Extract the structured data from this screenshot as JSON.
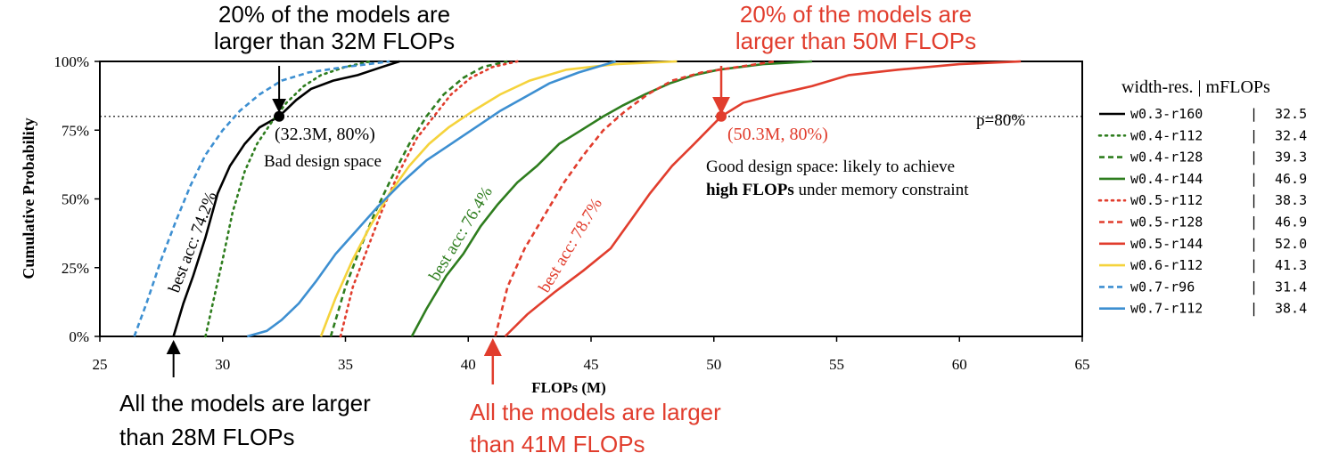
{
  "chart_data": {
    "type": "line",
    "xlabel": "FLOPs (M)",
    "ylabel": "Cumulative Probability",
    "xlim": [
      25,
      65
    ],
    "ylim": [
      0,
      100
    ],
    "xticks": [
      "25",
      "30",
      "35",
      "40",
      "45",
      "50",
      "55",
      "60",
      "65"
    ],
    "yticks": [
      "0%",
      "25%",
      "50%",
      "75%",
      "100%"
    ],
    "threshold": {
      "y": 80,
      "label": "p=80%"
    },
    "legend_placement": "right",
    "legend_header": "width-res. | mFLOPs",
    "series": [
      {
        "name": "w0.3-r160",
        "mflops": "32.5",
        "color": "#000000",
        "style": "solid",
        "points": [
          [
            28,
            0
          ],
          [
            28.4,
            12
          ],
          [
            28.8,
            22
          ],
          [
            29.3,
            36
          ],
          [
            29.8,
            52
          ],
          [
            30.3,
            62
          ],
          [
            30.9,
            70
          ],
          [
            31.5,
            76
          ],
          [
            32.3,
            80
          ],
          [
            33,
            86
          ],
          [
            33.6,
            90
          ],
          [
            34.5,
            93
          ],
          [
            35.5,
            95
          ],
          [
            36.5,
            98
          ],
          [
            37.2,
            100
          ]
        ]
      },
      {
        "name": "w0.4-r112",
        "mflops": "32.4",
        "color": "#2e7d1e",
        "style": "dotted",
        "points": [
          [
            29.3,
            0
          ],
          [
            29.6,
            12
          ],
          [
            30,
            28
          ],
          [
            30.4,
            45
          ],
          [
            30.9,
            60
          ],
          [
            31.4,
            70
          ],
          [
            32,
            78
          ],
          [
            32.6,
            85
          ],
          [
            33.3,
            91
          ],
          [
            34,
            95
          ],
          [
            35,
            98
          ],
          [
            36,
            100
          ]
        ]
      },
      {
        "name": "w0.4-r128",
        "mflops": "39.3",
        "color": "#2e7d1e",
        "style": "dashed",
        "points": [
          [
            34.4,
            0
          ],
          [
            35,
            18
          ],
          [
            35.6,
            32
          ],
          [
            36.2,
            45
          ],
          [
            36.9,
            58
          ],
          [
            37.6,
            70
          ],
          [
            38.3,
            80
          ],
          [
            39,
            88
          ],
          [
            39.8,
            94
          ],
          [
            40.6,
            98
          ],
          [
            41.6,
            100
          ]
        ]
      },
      {
        "name": "w0.4-r144",
        "mflops": "46.9",
        "color": "#2e7d1e",
        "style": "solid",
        "points": [
          [
            37.7,
            0
          ],
          [
            38.3,
            10
          ],
          [
            39.1,
            22
          ],
          [
            39.8,
            30
          ],
          [
            40.5,
            40
          ],
          [
            41.2,
            48
          ],
          [
            42,
            56
          ],
          [
            42.8,
            62
          ],
          [
            43.7,
            70
          ],
          [
            44.6,
            75
          ],
          [
            45.5,
            80
          ],
          [
            46.3,
            84
          ],
          [
            47.2,
            88
          ],
          [
            48.2,
            92
          ],
          [
            49.2,
            95
          ],
          [
            50.2,
            97
          ],
          [
            52,
            99
          ],
          [
            54,
            100
          ]
        ]
      },
      {
        "name": "w0.5-r112",
        "mflops": "38.3",
        "color": "#e13d2d",
        "style": "dotted",
        "points": [
          [
            34.8,
            0
          ],
          [
            35.3,
            18
          ],
          [
            35.9,
            32
          ],
          [
            36.5,
            46
          ],
          [
            37.2,
            60
          ],
          [
            37.9,
            72
          ],
          [
            38.6,
            80
          ],
          [
            39.3,
            88
          ],
          [
            40.1,
            94
          ],
          [
            41,
            98
          ],
          [
            42,
            100
          ]
        ]
      },
      {
        "name": "w0.5-r128",
        "mflops": "46.9",
        "color": "#e13d2d",
        "style": "dashed",
        "points": [
          [
            41.1,
            0
          ],
          [
            41.6,
            18
          ],
          [
            42.3,
            32
          ],
          [
            43.1,
            44
          ],
          [
            43.9,
            56
          ],
          [
            44.7,
            66
          ],
          [
            45.5,
            75
          ],
          [
            46.4,
            82
          ],
          [
            47.3,
            88
          ],
          [
            48.3,
            93
          ],
          [
            49.5,
            96
          ],
          [
            51,
            98
          ],
          [
            52.5,
            100
          ]
        ]
      },
      {
        "name": "w0.5-r144",
        "mflops": "52.0",
        "color": "#e13d2d",
        "style": "solid",
        "points": [
          [
            41.5,
            0
          ],
          [
            42.4,
            8
          ],
          [
            43.5,
            16
          ],
          [
            44.7,
            24
          ],
          [
            45.8,
            32
          ],
          [
            46.6,
            42
          ],
          [
            47.4,
            52
          ],
          [
            48.3,
            62
          ],
          [
            49.2,
            70
          ],
          [
            50.3,
            80
          ],
          [
            51.2,
            85
          ],
          [
            52.5,
            88
          ],
          [
            54,
            91
          ],
          [
            55.5,
            95
          ],
          [
            57.5,
            97
          ],
          [
            60,
            99
          ],
          [
            62.5,
            100
          ]
        ]
      },
      {
        "name": "w0.6-r112",
        "mflops": "41.3",
        "color": "#f5d33c",
        "style": "solid",
        "points": [
          [
            34,
            0
          ],
          [
            34.6,
            14
          ],
          [
            35.3,
            28
          ],
          [
            36,
            40
          ],
          [
            36.8,
            52
          ],
          [
            37.6,
            62
          ],
          [
            38.4,
            70
          ],
          [
            39.2,
            76
          ],
          [
            40.2,
            82
          ],
          [
            41.3,
            88
          ],
          [
            42.5,
            93
          ],
          [
            44,
            97
          ],
          [
            46,
            99
          ],
          [
            48.5,
            100
          ]
        ]
      },
      {
        "name": "w0.7-r96",
        "mflops": "31.4",
        "color": "#3d8fd1",
        "style": "dashed",
        "points": [
          [
            26.4,
            0
          ],
          [
            26.9,
            12
          ],
          [
            27.5,
            28
          ],
          [
            28.1,
            42
          ],
          [
            28.7,
            55
          ],
          [
            29.3,
            66
          ],
          [
            30,
            75
          ],
          [
            30.7,
            82
          ],
          [
            31.5,
            88
          ],
          [
            32.4,
            93
          ],
          [
            33.5,
            96
          ],
          [
            35,
            98
          ],
          [
            36.8,
            100
          ]
        ]
      },
      {
        "name": "w0.7-r112",
        "mflops": "38.4",
        "color": "#3d8fd1",
        "style": "solid",
        "points": [
          [
            31,
            0
          ],
          [
            31.8,
            2
          ],
          [
            32.4,
            6
          ],
          [
            33.1,
            12
          ],
          [
            33.8,
            20
          ],
          [
            34.6,
            30
          ],
          [
            35.4,
            38
          ],
          [
            36.3,
            47
          ],
          [
            37.3,
            56
          ],
          [
            38.3,
            64
          ],
          [
            39.3,
            70
          ],
          [
            40.3,
            76
          ],
          [
            41.3,
            82
          ],
          [
            42.3,
            87
          ],
          [
            43.3,
            92
          ],
          [
            44.5,
            96
          ],
          [
            46,
            100
          ]
        ]
      }
    ],
    "annotations": {
      "top_left": {
        "line1": "20% of the models are",
        "line2": "larger than 32M FLOPs"
      },
      "top_right": {
        "line1": "20% of the models are",
        "line2": "larger than 50M FLOPs"
      },
      "bottom_left": {
        "line1": "All the models are larger",
        "line2": "than 28M FLOPs"
      },
      "bottom_right": {
        "line1": "All the models are larger",
        "line2": "than 41M FLOPs"
      },
      "point_left": {
        "x": 32.3,
        "y": 80,
        "label": "(32.3M, 80%)"
      },
      "point_right": {
        "x": 50.3,
        "y": 80,
        "label": "(50.3M, 80%)"
      },
      "bad_space": "Bad design space",
      "good_space_line1": "Good design space: likely to achieve",
      "good_space_bold": "high FLOPs",
      "good_space_rest": " under memory constraint",
      "best_acc_black": "best acc: 74.2%",
      "best_acc_green": "best acc: 76.4%",
      "best_acc_red": "best acc: 78.7%",
      "arrow_left_bottom_x": 28,
      "arrow_right_bottom_x": 41
    }
  }
}
